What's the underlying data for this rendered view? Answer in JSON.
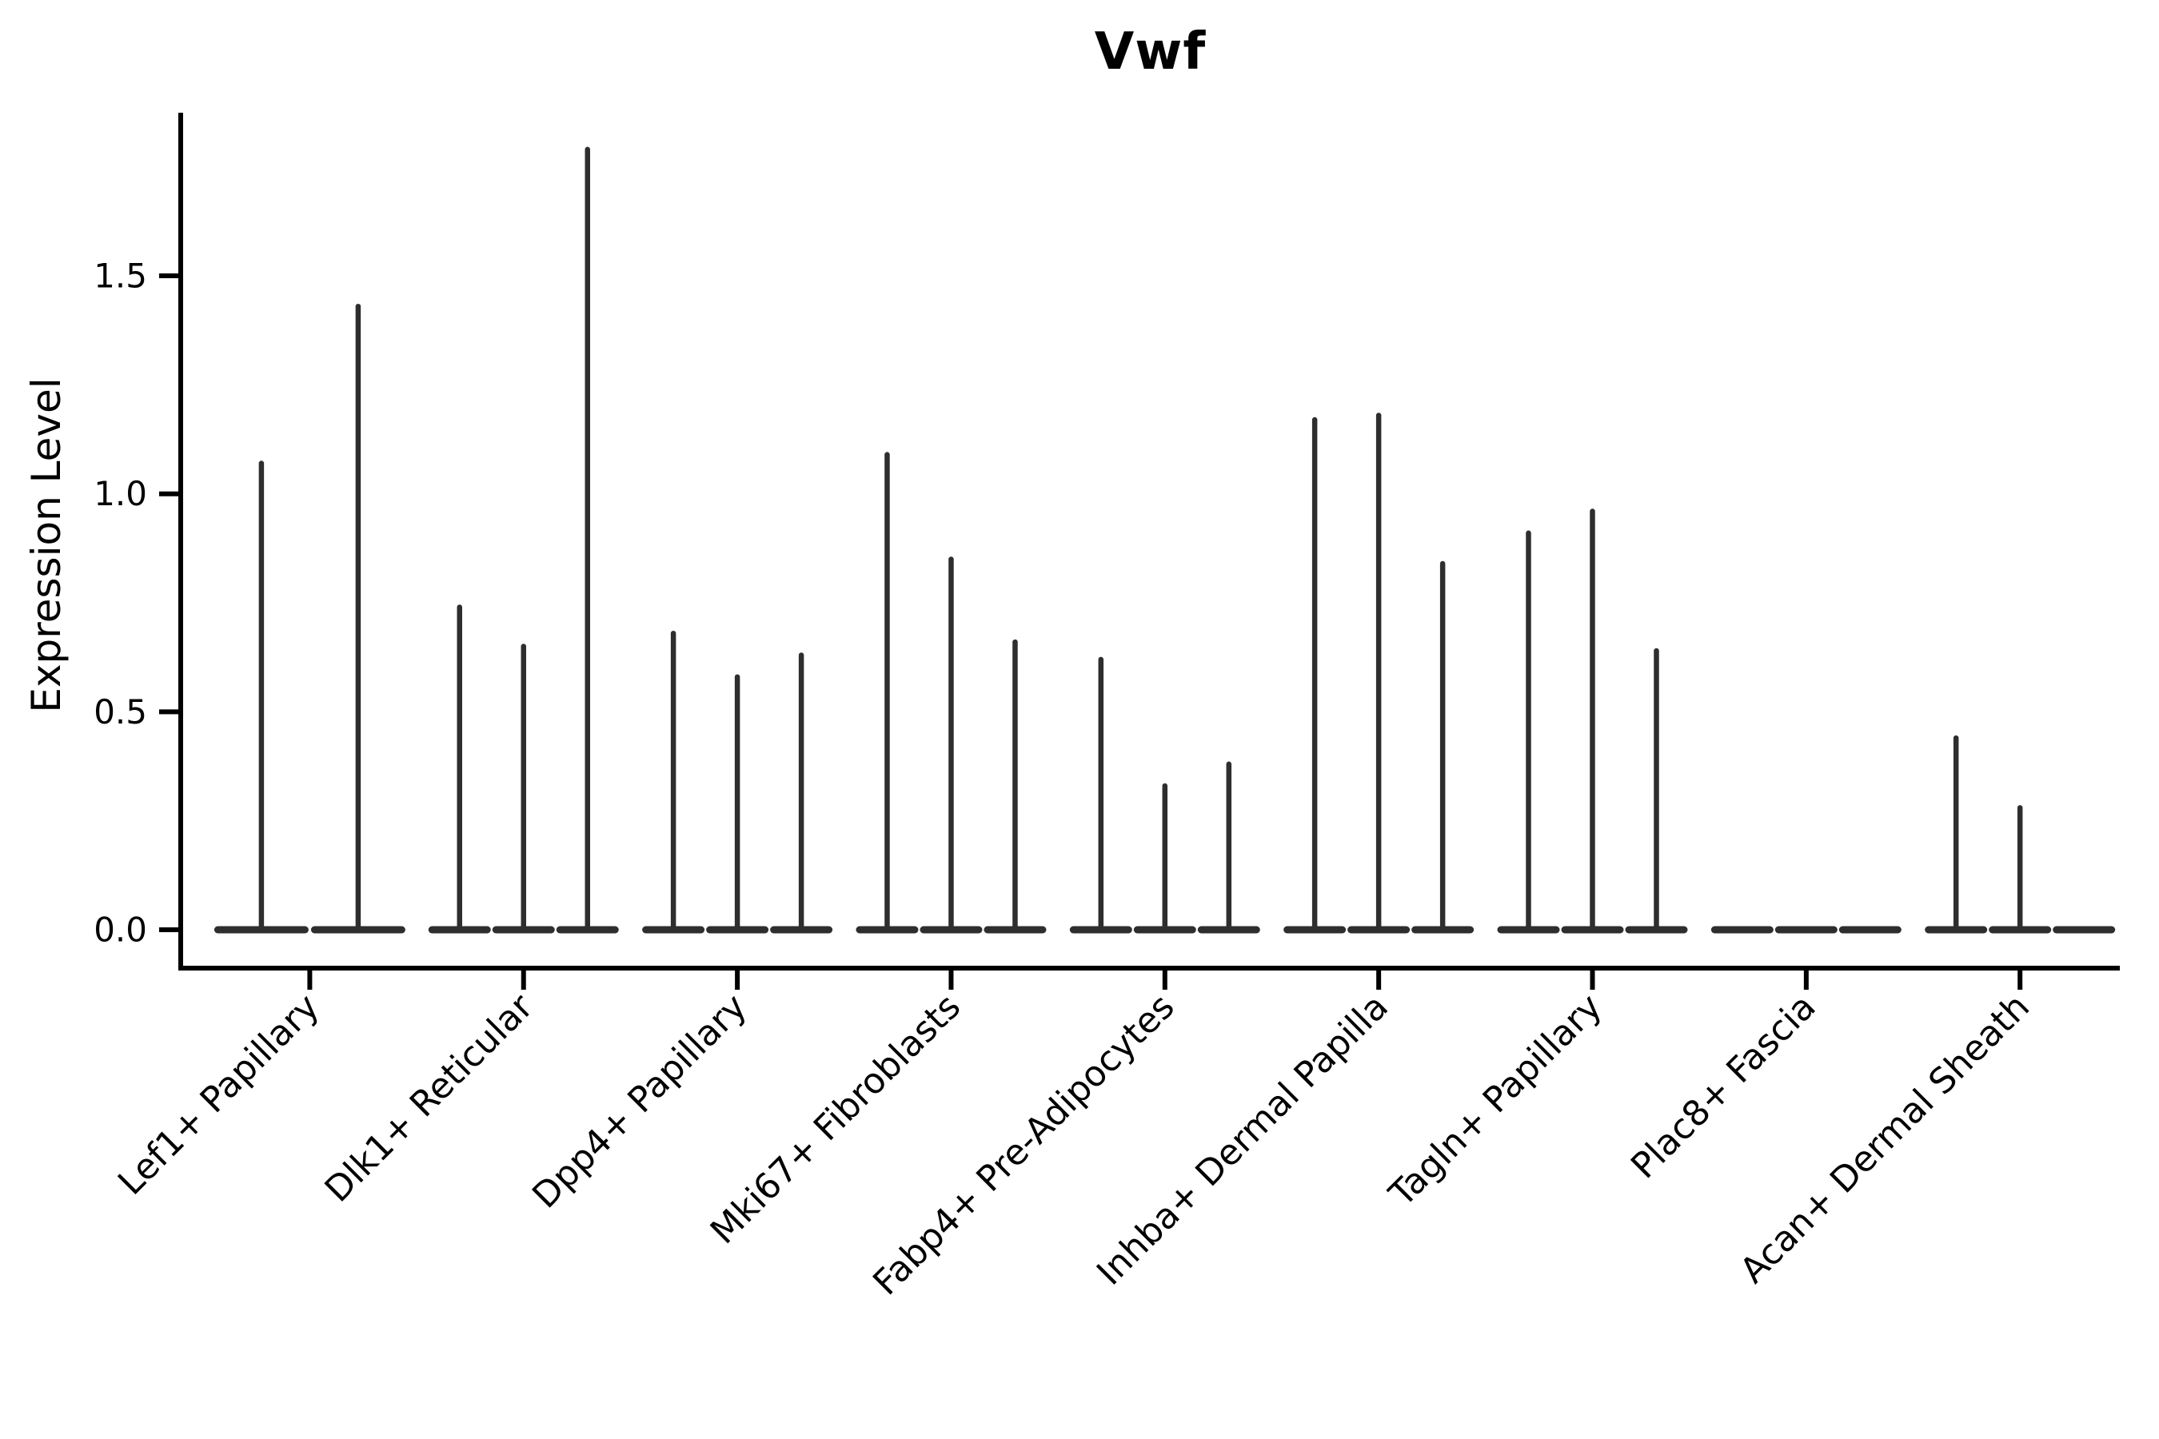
{
  "title": "Vwf",
  "chart_data": {
    "type": "violin",
    "title": "Vwf",
    "xlabel": "",
    "ylabel": "Expression Level",
    "ylim": [
      -0.09,
      1.88
    ],
    "yticks": [
      "0.0",
      "0.5",
      "1.0",
      "1.5"
    ],
    "ytick_values": [
      0.0,
      0.5,
      1.0,
      1.5
    ],
    "grid": false,
    "legend": "none",
    "x_tick_rotation": 45,
    "categories": [
      "Lef1+ Papillary",
      "Dlk1+ Reticular",
      "Dpp4+ Papillary",
      "Mki67+ Fibroblasts",
      "Fabp4+ Pre-Adipocytes",
      "Inhba+ Dermal Papilla",
      "Tagln+ Papillary",
      "Plac8+ Fascia",
      "Acan+ Dermal Sheath"
    ],
    "groups": [
      {
        "label": "Lef1+ Papillary",
        "violin_max_values": [
          1.07,
          1.43
        ]
      },
      {
        "label": "Dlk1+ Reticular",
        "violin_max_values": [
          0.74,
          0.65,
          1.79
        ]
      },
      {
        "label": "Dpp4+ Papillary",
        "violin_max_values": [
          0.68,
          0.58,
          0.63
        ]
      },
      {
        "label": "Mki67+ Fibroblasts",
        "violin_max_values": [
          1.09,
          0.85,
          0.66
        ]
      },
      {
        "label": "Fabp4+ Pre-Adipocytes",
        "violin_max_values": [
          0.62,
          0.33,
          0.38
        ]
      },
      {
        "label": "Inhba+ Dermal Papilla",
        "violin_max_values": [
          1.17,
          1.18,
          0.84
        ]
      },
      {
        "label": "Tagln+ Papillary",
        "violin_max_values": [
          0.91,
          0.96,
          0.64
        ]
      },
      {
        "label": "Plac8+ Fascia",
        "violin_max_values": [
          0.0,
          0.0,
          0.0
        ]
      },
      {
        "label": "Acan+ Dermal Sheath",
        "violin_max_values": [
          0.44,
          0.28,
          0.0
        ]
      }
    ],
    "colors": {
      "violin": "#2e2e2e",
      "axis": "#000000",
      "text": "#000000",
      "background": "#ffffff"
    }
  }
}
